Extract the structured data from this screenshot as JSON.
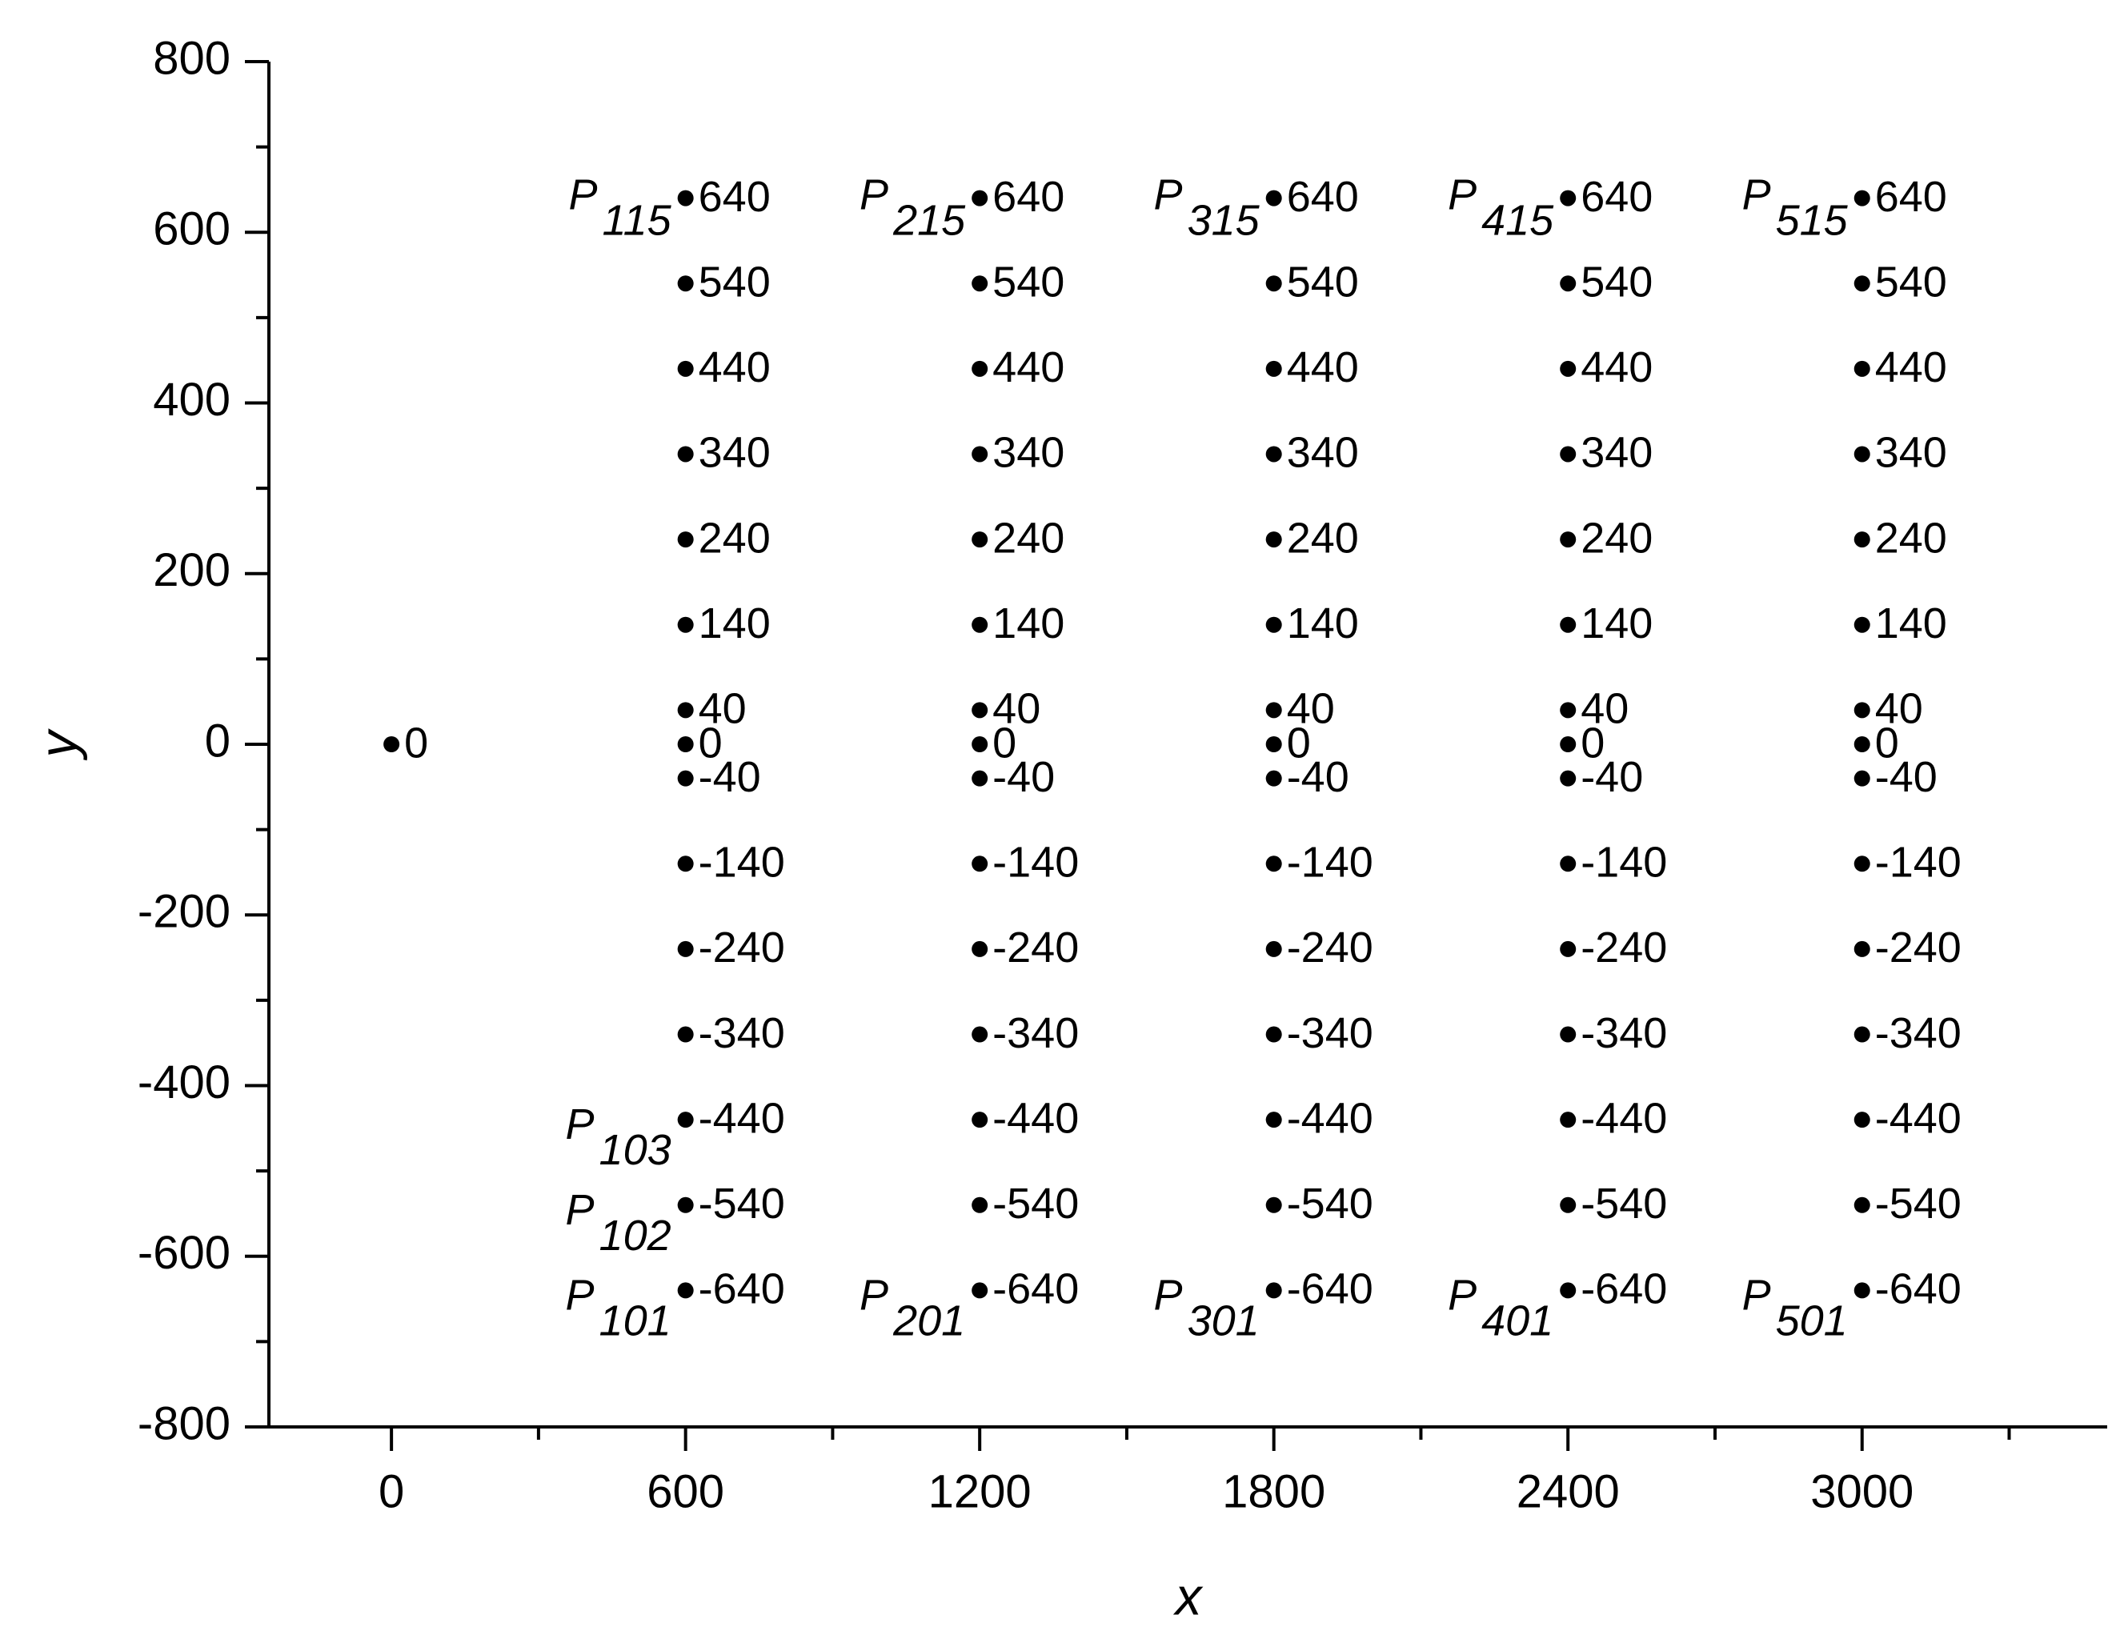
{
  "chart_data": {
    "type": "scatter",
    "x_label": "x",
    "y_label": "y",
    "xlim": [
      -250,
      3500
    ],
    "ylim": [
      -800,
      800
    ],
    "xticks": [
      0,
      600,
      1200,
      1800,
      2400,
      3000
    ],
    "yticks": [
      -800,
      -600,
      -400,
      -200,
      0,
      200,
      400,
      600,
      800
    ],
    "grid": false,
    "color": "#000000",
    "series": [
      {
        "x": [
          0
        ],
        "values": [
          0
        ],
        "point_labels": [
          null
        ]
      },
      {
        "x": [
          600,
          600,
          600,
          600,
          600,
          600,
          600,
          600,
          600,
          600,
          600,
          600,
          600,
          600,
          600
        ],
        "values": [
          640,
          540,
          440,
          340,
          240,
          140,
          40,
          0,
          -40,
          -140,
          -240,
          -340,
          -440,
          -540,
          -640
        ],
        "point_labels": [
          "P115",
          null,
          null,
          null,
          null,
          null,
          null,
          null,
          null,
          null,
          null,
          null,
          "P103",
          "P102",
          "P101"
        ]
      },
      {
        "x": [
          1200,
          1200,
          1200,
          1200,
          1200,
          1200,
          1200,
          1200,
          1200,
          1200,
          1200,
          1200,
          1200,
          1200,
          1200
        ],
        "values": [
          640,
          540,
          440,
          340,
          240,
          140,
          40,
          0,
          -40,
          -140,
          -240,
          -340,
          -440,
          -540,
          -640
        ],
        "point_labels": [
          "P215",
          null,
          null,
          null,
          null,
          null,
          null,
          null,
          null,
          null,
          null,
          null,
          null,
          null,
          "P201"
        ]
      },
      {
        "x": [
          1800,
          1800,
          1800,
          1800,
          1800,
          1800,
          1800,
          1800,
          1800,
          1800,
          1800,
          1800,
          1800,
          1800,
          1800
        ],
        "values": [
          640,
          540,
          440,
          340,
          240,
          140,
          40,
          0,
          -40,
          -140,
          -240,
          -340,
          -440,
          -540,
          -640
        ],
        "point_labels": [
          "P315",
          null,
          null,
          null,
          null,
          null,
          null,
          null,
          null,
          null,
          null,
          null,
          null,
          null,
          "P301"
        ]
      },
      {
        "x": [
          2400,
          2400,
          2400,
          2400,
          2400,
          2400,
          2400,
          2400,
          2400,
          2400,
          2400,
          2400,
          2400,
          2400,
          2400
        ],
        "values": [
          640,
          540,
          440,
          340,
          240,
          140,
          40,
          0,
          -40,
          -140,
          -240,
          -340,
          -440,
          -540,
          -640
        ],
        "point_labels": [
          "P415",
          null,
          null,
          null,
          null,
          null,
          null,
          null,
          null,
          null,
          null,
          null,
          null,
          null,
          "P401"
        ]
      },
      {
        "x": [
          3000,
          3000,
          3000,
          3000,
          3000,
          3000,
          3000,
          3000,
          3000,
          3000,
          3000,
          3000,
          3000,
          3000,
          3000
        ],
        "values": [
          640,
          540,
          440,
          340,
          240,
          140,
          40,
          0,
          -40,
          -140,
          -240,
          -340,
          -440,
          -540,
          -640
        ],
        "point_labels": [
          "P515",
          null,
          null,
          null,
          null,
          null,
          null,
          null,
          null,
          null,
          null,
          null,
          null,
          null,
          "P501"
        ]
      }
    ]
  }
}
